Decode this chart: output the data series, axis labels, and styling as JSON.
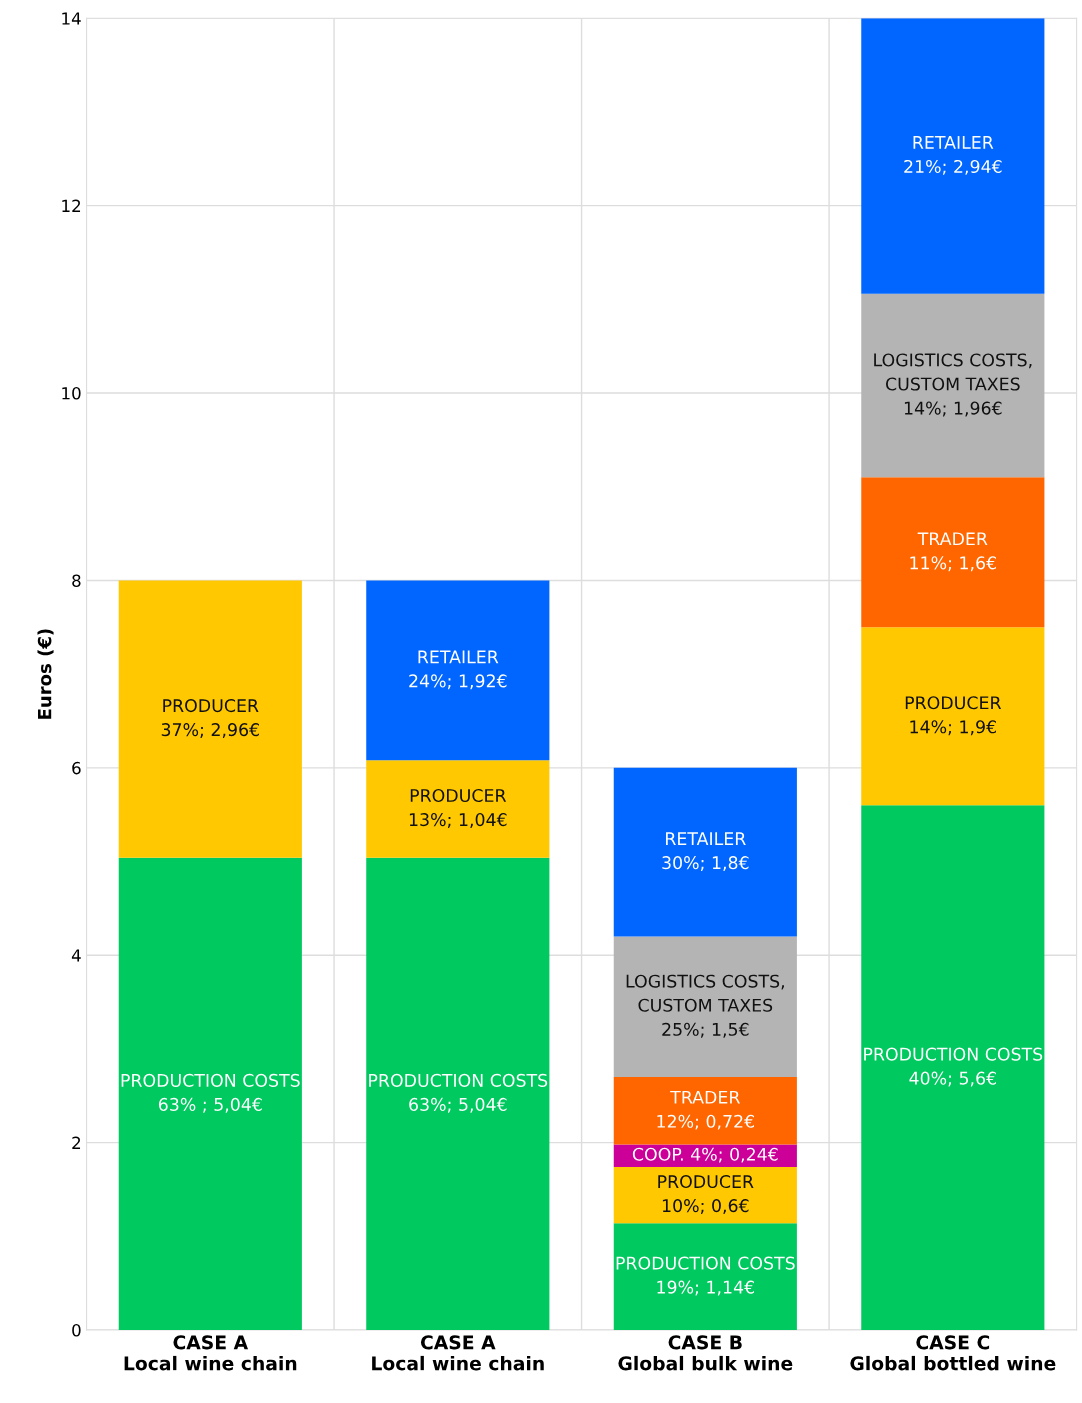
{
  "chart_data": {
    "type": "bar",
    "stacked": true,
    "ylabel": "Euros (€)",
    "categories": [
      "CASE A\nLocal wine chain",
      "CASE A\nLocal wine chain",
      "CASE B\nGlobal bulk wine",
      "CASE C\nGlobal bottled wine"
    ],
    "series": [
      {
        "color": "#00c95f",
        "values": [
          5.04,
          5.04,
          1.14,
          5.6
        ],
        "value_labels": [
          "PRODUCTION COSTS\n63% ; 5,04€",
          "PRODUCTION COSTS\n63%; 5,04€",
          "PRODUCTION COSTS\n19%; 1,14€",
          "PRODUCTION COSTS\n40%; 5,6€"
        ]
      },
      {
        "color": "#ffc800",
        "values": [
          2.96,
          1.04,
          0.6,
          1.9
        ],
        "value_labels": [
          "PRODUCER\n37%; 2,96€",
          "PRODUCER\n13%; 1,04€",
          "PRODUCER\n10%; 0,6€",
          "PRODUCER\n14%; 1,9€"
        ]
      },
      {
        "color": "#cc0099",
        "values": [
          null,
          null,
          0.24,
          null
        ],
        "value_labels": [
          null,
          null,
          "COOP. 4%; 0,24€",
          null
        ]
      },
      {
        "color": "#ff6600",
        "values": [
          null,
          null,
          0.72,
          1.6
        ],
        "value_labels": [
          null,
          null,
          "TRADER\n12%; 0,72€",
          "TRADER\n11%; 1,6€"
        ]
      },
      {
        "color": "#b4b4b4",
        "values": [
          null,
          null,
          1.5,
          1.96
        ],
        "value_labels": [
          null,
          null,
          "LOGISTICS COSTS,\nCUSTOM TAXES\n25%; 1,5€",
          "LOGISTICS COSTS,\nCUSTOM TAXES\n14%; 1,96€"
        ]
      },
      {
        "color": "#0066ff",
        "values": [
          null,
          1.92,
          1.8,
          2.94
        ],
        "value_labels": [
          null,
          "RETAILER\n24%; 1,92€",
          "RETAILER\n30%; 1,8€",
          "RETAILER\n21%; 2,94€"
        ]
      }
    ],
    "ylim": [
      0,
      14
    ],
    "yticks": [
      0,
      2,
      4,
      6,
      8,
      10,
      12,
      14
    ],
    "grid": true,
    "legend": false
  }
}
